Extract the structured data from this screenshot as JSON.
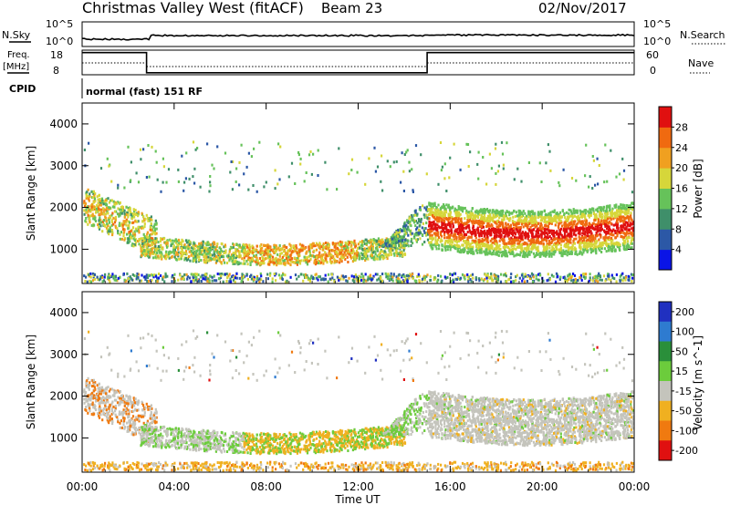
{
  "header": {
    "title": "Christmas Valley West (fitACF)",
    "beam": "Beam 23",
    "date": "02/Nov/2017"
  },
  "noise_panel": {
    "left_label": "N.Sky",
    "right_label": "N.Search",
    "left_ticks": [
      "10^5",
      "10^0"
    ],
    "right_ticks": [
      "10^5",
      "10^0"
    ]
  },
  "freq_panel": {
    "left_label_1": "Freq.",
    "left_label_2": "[MHz]",
    "right_label": "Nave",
    "left_ticks": [
      "18",
      "8"
    ],
    "right_ticks": [
      "60",
      "0"
    ]
  },
  "cpid": {
    "label": "CPID",
    "text": "normal (fast) 151 RF"
  },
  "power_panel": {
    "ylabel": "Slant Range [km]",
    "yticks": [
      "1000",
      "2000",
      "3000",
      "4000"
    ],
    "cbar_label": "Power [dB]",
    "cbar_ticks": [
      "4",
      "8",
      "12",
      "16",
      "20",
      "24",
      "28"
    ],
    "cbar_colors": [
      "#0a14e6",
      "#2c58a6",
      "#3f8f6a",
      "#66c25a",
      "#d6d63a",
      "#f0a020",
      "#f06a10",
      "#e01010"
    ]
  },
  "velocity_panel": {
    "ylabel": "Slant Range [km]",
    "yticks": [
      "1000",
      "2000",
      "3000",
      "4000"
    ],
    "cbar_label": "Velocity [m s^-1]",
    "cbar_ticks": [
      "200",
      "100",
      "50",
      "15",
      "-15",
      "-50",
      "-100",
      "-200"
    ],
    "cbar_colors": [
      "#2030c0",
      "#2e7bd0",
      "#2a8f3a",
      "#6ccc3c",
      "#c4c4bc",
      "#f0b020",
      "#f07a10",
      "#e01010"
    ]
  },
  "xaxis": {
    "label": "Time UT",
    "ticks": [
      "00:00",
      "04:00",
      "08:00",
      "12:00",
      "16:00",
      "20:00",
      "00:00"
    ]
  },
  "chart_data": [
    {
      "type": "line",
      "title": "Christmas Valley West (fitACF) Beam 23 02/Nov/2017",
      "x_range_hours": [
        0,
        24
      ],
      "series": [
        {
          "name": "Freq.",
          "x": [
            0,
            2.8,
            2.8,
            15,
            15,
            24
          ],
          "y": [
            17,
            17,
            8.8,
            8.8,
            17,
            17
          ]
        }
      ],
      "ylim": [
        8,
        18
      ],
      "ylabel": "Freq. [MHz]"
    },
    {
      "type": "heatmap",
      "title": "Power [dB]",
      "x_range_hours": [
        0,
        24
      ],
      "ylim_km": [
        180,
        4500
      ],
      "colorbar_range": [
        0,
        30
      ],
      "features": [
        {
          "t_start": 0,
          "t_end": 3,
          "range_km": [
            1400,
            2600
          ],
          "power_db": [
            8,
            20
          ]
        },
        {
          "t_start": 2.5,
          "t_end": 14,
          "range_km": [
            700,
            1300
          ],
          "power_db": [
            8,
            20
          ]
        },
        {
          "t_start": 15,
          "t_end": 24,
          "range_km": [
            1100,
            2400
          ],
          "power_db": [
            12,
            30
          ]
        }
      ]
    },
    {
      "type": "heatmap",
      "title": "Velocity [m s^-1]",
      "x_range_hours": [
        0,
        24
      ],
      "ylim_km": [
        180,
        4500
      ],
      "colorbar_range": [
        -200,
        200
      ]
    }
  ]
}
